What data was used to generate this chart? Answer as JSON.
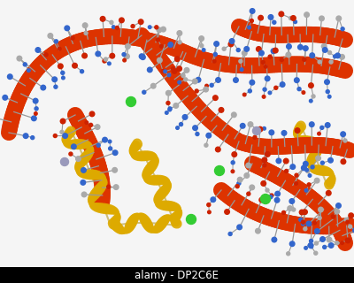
{
  "bg_color": "#f5f5f5",
  "dna_color": "#dd3300",
  "dna_shadow": "#ff6600",
  "nt_stick": "#999999",
  "nt_N": "#3366cc",
  "nt_O": "#cc2200",
  "nt_C": "#aaaaaa",
  "helix_color": "#ddaa00",
  "helix_dark": "#aa8800",
  "ion_green": "#33cc33",
  "ion_grey": "#9999bb",
  "wm_text": "alamy - DP2C6E",
  "wm_bg": "#000000",
  "wm_fg": "#ffffff"
}
